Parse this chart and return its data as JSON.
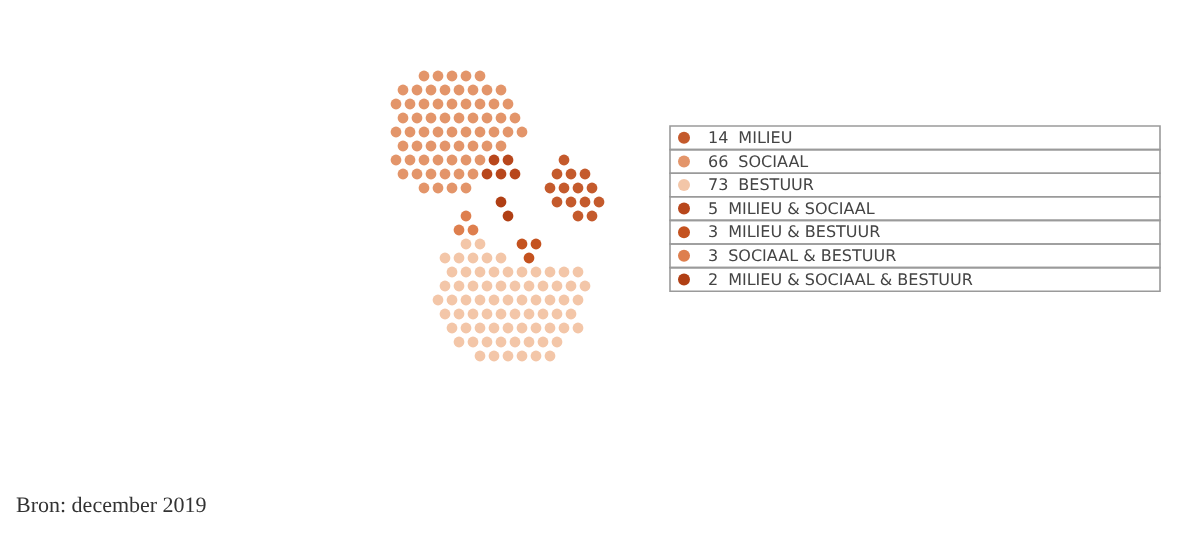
{
  "chart_data": {
    "type": "other",
    "categories": [
      "MILIEU",
      "SOCIAAL",
      "BESTUUR",
      "MILIEU & SOCIAAL",
      "MILIEU & BESTUUR",
      "SOCIAAL & BESTUUR",
      "MILIEU & SOCIAAL & BESTUUR"
    ],
    "values": [
      14,
      66,
      73,
      5,
      3,
      3,
      2
    ],
    "colors": [
      "#c45a2c",
      "#e3956a",
      "#f3c6a8",
      "#b8471c",
      "#c4521f",
      "#de7f4e",
      "#b03f14"
    ],
    "data_labels": true,
    "annotations": [
      "Bron: december 2019"
    ]
  }
}
